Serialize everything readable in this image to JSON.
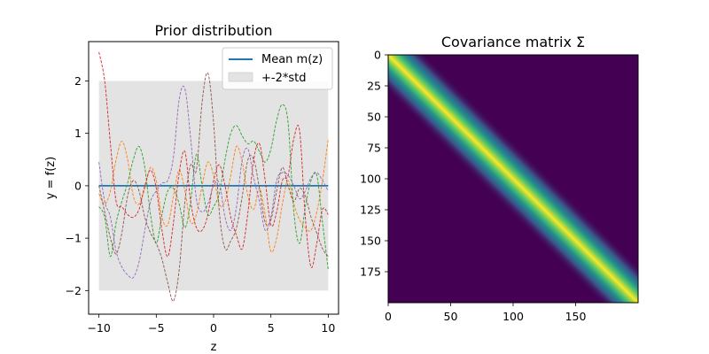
{
  "chart_data": [
    {
      "type": "line",
      "title": "Prior distribution",
      "xlabel": "z",
      "ylabel": "y = f(z)",
      "xlim": [
        -10.9,
        10.9
      ],
      "ylim": [
        -2.45,
        2.75
      ],
      "xticks": [
        -10,
        -5,
        0,
        5,
        10
      ],
      "yticks": [
        -2,
        -1,
        0,
        1,
        2
      ],
      "grid": false,
      "legend": {
        "placement": "top-right",
        "entries": [
          "Mean m(z)",
          "+-2*std"
        ]
      },
      "band": {
        "name": "+-2*std",
        "lower": -2,
        "upper": 2,
        "x": [
          -10,
          10
        ],
        "color": "#e3e3e3"
      },
      "mean": {
        "name": "Mean m(z)",
        "x": [
          -10,
          10
        ],
        "y": [
          0,
          0
        ],
        "color": "#1f77b4"
      },
      "samples": [
        {
          "color": "#ff7f0e",
          "x": [
            -10,
            -9.5,
            -9,
            -8.5,
            -8,
            -7.5,
            -7,
            -6.5,
            -6,
            -5.5,
            -5,
            -4.5,
            -4,
            -3.5,
            -3,
            -2.5,
            -2,
            -1.5,
            -1,
            -0.5,
            0,
            0.5,
            1,
            1.5,
            2,
            2.5,
            3,
            3.5,
            4,
            4.5,
            5,
            5.5,
            6,
            6.5,
            7,
            7.5,
            8,
            8.5,
            9,
            9.5,
            10
          ],
          "y": [
            -0.15,
            -0.35,
            -0.1,
            0.5,
            0.85,
            0.5,
            -0.2,
            -0.35,
            -0.05,
            0.35,
            0.1,
            -0.6,
            -0.75,
            -0.2,
            0.3,
            -0.1,
            -0.7,
            -0.55,
            0.0,
            0.45,
            0.2,
            -0.35,
            -0.3,
            0.2,
            0.75,
            0.45,
            -0.2,
            -0.45,
            -0.05,
            -0.55,
            -1.25,
            -1.0,
            -0.35,
            0.1,
            -0.35,
            -0.65,
            -0.8,
            -0.85,
            -0.5,
            0.1,
            0.9
          ]
        },
        {
          "color": "#2ca02c",
          "x": [
            -10,
            -9.5,
            -9,
            -8.5,
            -8,
            -7.5,
            -7,
            -6.5,
            -6,
            -5.5,
            -5,
            -4.5,
            -4,
            -3.5,
            -3,
            -2.5,
            -2,
            -1.5,
            -1,
            -0.5,
            0,
            0.5,
            1,
            1.5,
            2,
            2.5,
            3,
            3.5,
            4,
            4.5,
            5,
            5.5,
            6,
            6.5,
            7,
            7.5,
            8,
            8.5,
            9,
            9.5,
            10
          ],
          "y": [
            -0.4,
            -0.6,
            -1.35,
            -0.7,
            -0.3,
            0.05,
            0.5,
            0.75,
            0.35,
            -0.55,
            -1.1,
            -0.55,
            -0.1,
            -0.05,
            -0.35,
            -0.8,
            -0.3,
            0.6,
            0.0,
            -0.55,
            -0.4,
            -0.15,
            0.5,
            1.0,
            1.15,
            0.95,
            0.8,
            0.85,
            0.65,
            0.45,
            0.7,
            1.25,
            1.55,
            1.2,
            -0.5,
            -1.1,
            -0.4,
            0.1,
            0.2,
            -0.7,
            -1.6
          ]
        },
        {
          "color": "#d62728",
          "x": [
            -10,
            -9.5,
            -9,
            -8.5,
            -8,
            -7.5,
            -7,
            -6.5,
            -6,
            -5.5,
            -5,
            -4.5,
            -4,
            -3.5,
            -3,
            -2.5,
            -2,
            -1.5,
            -1,
            -0.5,
            0,
            0.5,
            1,
            1.5,
            2,
            2.5,
            3,
            3.5,
            4,
            4.5,
            5,
            5.5,
            6,
            6.5,
            7,
            7.5,
            8,
            8.5,
            9,
            9.5,
            10
          ],
          "y": [
            2.55,
            2.0,
            0.8,
            -0.3,
            -0.4,
            -0.55,
            -0.6,
            -0.45,
            0.0,
            0.3,
            -0.05,
            -0.85,
            -1.35,
            -0.7,
            0.25,
            0.65,
            -0.3,
            -0.8,
            -0.85,
            -0.55,
            0.1,
            0.4,
            0.0,
            -0.6,
            -0.95,
            -1.2,
            -0.5,
            0.5,
            0.8,
            0.1,
            -0.75,
            -0.5,
            0.1,
            0.2,
            0.9,
            1.05,
            -0.6,
            -1.55,
            -1.1,
            -0.45,
            -0.55
          ]
        },
        {
          "color": "#9467bd",
          "x": [
            -10,
            -9.5,
            -9,
            -8.5,
            -8,
            -7.5,
            -7,
            -6.5,
            -6,
            -5.5,
            -5,
            -4.5,
            -4,
            -3.5,
            -3,
            -2.5,
            -2,
            -1.5,
            -1,
            -0.5,
            0,
            0.5,
            1,
            1.5,
            2,
            2.5,
            3,
            3.5,
            4,
            4.5,
            5,
            5.5,
            6,
            6.5,
            7,
            7.5,
            8,
            8.5,
            9,
            9.5,
            10
          ],
          "y": [
            0.45,
            -0.3,
            -0.6,
            -1.25,
            -1.55,
            -1.7,
            -1.75,
            -1.45,
            -0.85,
            -0.3,
            -0.1,
            0.05,
            0.1,
            0.55,
            1.65,
            1.85,
            0.9,
            -0.25,
            -0.5,
            -0.35,
            0.0,
            0.05,
            -0.6,
            -0.85,
            -0.4,
            0.5,
            0.7,
            0.15,
            -0.3,
            -0.85,
            -0.6,
            0.1,
            0.25,
            0.2,
            0.0,
            -0.25,
            -0.1,
            0.15,
            0.25,
            0.1,
            -0.1
          ]
        },
        {
          "color": "#8c564b",
          "x": [
            -10,
            -9.5,
            -9,
            -8.5,
            -8,
            -7.5,
            -7,
            -6.5,
            -6,
            -5.5,
            -5,
            -4.5,
            -4,
            -3.5,
            -3,
            -2.5,
            -2,
            -1.5,
            -1,
            -0.5,
            0,
            0.5,
            1,
            1.5,
            2,
            2.5,
            3,
            3.5,
            4,
            4.5,
            5,
            5.5,
            6,
            6.5,
            7,
            7.5,
            8,
            8.5,
            9,
            9.5,
            10
          ],
          "y": [
            0.0,
            -0.5,
            -1.0,
            -1.3,
            -0.9,
            -0.2,
            0.1,
            -0.1,
            -0.6,
            -0.9,
            -1.1,
            -1.4,
            -1.85,
            -2.2,
            -1.6,
            -0.3,
            0.4,
            0.3,
            1.6,
            2.15,
            1.2,
            -0.5,
            -1.2,
            -1.05,
            -0.8,
            -0.2,
            0.5,
            0.5,
            -0.05,
            -0.7,
            -0.65,
            -0.1,
            0.35,
            0.0,
            -0.3,
            -0.05,
            -0.2,
            -0.6,
            -0.9,
            -1.2,
            -1.35
          ]
        }
      ]
    },
    {
      "type": "heatmap",
      "title": "Covariance matrix Σ",
      "xlabel": "",
      "ylabel": "",
      "size": 200,
      "xticks": [
        0,
        50,
        100,
        150
      ],
      "yticks": [
        0,
        25,
        50,
        75,
        100,
        125,
        150,
        175
      ],
      "colormap": [
        "#440154",
        "#3b528b",
        "#21918c",
        "#5ec962",
        "#fde725"
      ],
      "grid": false
    }
  ]
}
